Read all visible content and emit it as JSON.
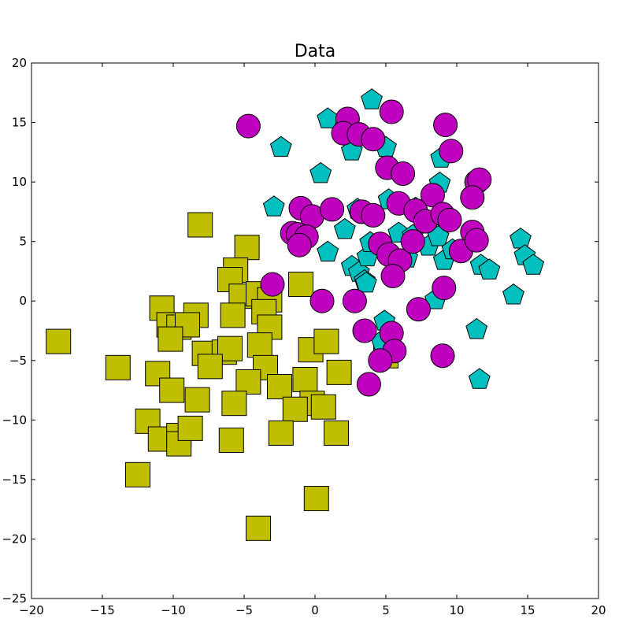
{
  "chart_data": {
    "type": "scatter",
    "title": "Data",
    "xlabel": "",
    "ylabel": "",
    "xlim": [
      -20,
      20
    ],
    "ylim": [
      -25,
      20
    ],
    "xticks": [
      -20,
      -15,
      -10,
      -5,
      0,
      5,
      10,
      15,
      20
    ],
    "yticks": [
      -25,
      -20,
      -15,
      -10,
      -5,
      0,
      5,
      10,
      15,
      20
    ],
    "xtick_labels": [
      "−20",
      "−15",
      "−10",
      "−5",
      "0",
      "5",
      "10",
      "15",
      "20"
    ],
    "ytick_labels": [
      "−25",
      "−20",
      "−15",
      "−10",
      "−5",
      "0",
      "5",
      "10",
      "15",
      "20"
    ],
    "grid": false,
    "series": [
      {
        "marker": "square",
        "color": "#bfbf00",
        "points": [
          [
            -8.1,
            6.4
          ],
          [
            -4.8,
            4.5
          ],
          [
            -5.6,
            2.6
          ],
          [
            -6.0,
            1.8
          ],
          [
            -5.2,
            0.4
          ],
          [
            -4.0,
            0.6
          ],
          [
            -3.2,
            0.1
          ],
          [
            -1.0,
            1.4
          ],
          [
            -10.8,
            -0.6
          ],
          [
            -8.4,
            -1.2
          ],
          [
            -10.3,
            -2.0
          ],
          [
            -9.6,
            -2.2
          ],
          [
            -9.0,
            -2.0
          ],
          [
            -5.8,
            -1.2
          ],
          [
            -3.6,
            -0.9
          ],
          [
            -3.2,
            -2.2
          ],
          [
            -10.2,
            -3.2
          ],
          [
            -7.8,
            -4.4
          ],
          [
            -6.4,
            -4.3
          ],
          [
            -6.0,
            -4.0
          ],
          [
            -3.9,
            -3.7
          ],
          [
            -7.4,
            -5.5
          ],
          [
            -3.5,
            -5.6
          ],
          [
            -0.3,
            -4.1
          ],
          [
            0.8,
            -3.4
          ],
          [
            -13.9,
            -5.6
          ],
          [
            -11.1,
            -6.1
          ],
          [
            -10.1,
            -7.5
          ],
          [
            -8.3,
            -8.3
          ],
          [
            -4.7,
            -6.8
          ],
          [
            -2.5,
            -7.2
          ],
          [
            -0.7,
            -6.6
          ],
          [
            -0.2,
            -8.6
          ],
          [
            -1.4,
            -9.1
          ],
          [
            0.6,
            -8.9
          ],
          [
            1.7,
            -6.0
          ],
          [
            -5.7,
            -8.6
          ],
          [
            -11.8,
            -10.1
          ],
          [
            -10.9,
            -11.6
          ],
          [
            -9.6,
            -11.3
          ],
          [
            -9.6,
            -12.0
          ],
          [
            -8.8,
            -10.7
          ],
          [
            -5.9,
            -11.7
          ],
          [
            -2.4,
            -11.1
          ],
          [
            1.5,
            -11.1
          ],
          [
            -12.5,
            -14.6
          ],
          [
            0.1,
            -16.6
          ],
          [
            -4.0,
            -19.1
          ],
          [
            -18.1,
            -3.4
          ],
          [
            5.0,
            -4.6
          ]
        ]
      },
      {
        "marker": "pentagon",
        "color": "#00bfbf",
        "points": [
          [
            4.0,
            16.9
          ],
          [
            0.9,
            15.3
          ],
          [
            -2.4,
            12.9
          ],
          [
            2.6,
            12.6
          ],
          [
            5.0,
            12.9
          ],
          [
            0.4,
            10.7
          ],
          [
            8.9,
            12.0
          ],
          [
            8.8,
            9.9
          ],
          [
            11.3,
            9.7
          ],
          [
            -2.9,
            7.9
          ],
          [
            2.1,
            6.0
          ],
          [
            3.0,
            7.7
          ],
          [
            5.2,
            8.5
          ],
          [
            7.1,
            7.8
          ],
          [
            0.9,
            4.1
          ],
          [
            2.6,
            2.9
          ],
          [
            3.1,
            2.4
          ],
          [
            3.7,
            3.7
          ],
          [
            3.9,
            4.9
          ],
          [
            3.5,
            1.7
          ],
          [
            5.9,
            5.7
          ],
          [
            6.5,
            3.6
          ],
          [
            6.9,
            5.5
          ],
          [
            8.0,
            4.6
          ],
          [
            8.7,
            5.4
          ],
          [
            9.1,
            3.4
          ],
          [
            9.7,
            4.3
          ],
          [
            11.7,
            3.0
          ],
          [
            12.3,
            2.6
          ],
          [
            14.5,
            5.2
          ],
          [
            14.8,
            3.8
          ],
          [
            15.4,
            3.0
          ],
          [
            14.0,
            0.5
          ],
          [
            8.5,
            0.1
          ],
          [
            4.9,
            -1.7
          ],
          [
            4.7,
            -3.4
          ],
          [
            11.4,
            -2.4
          ],
          [
            11.6,
            -6.6
          ],
          [
            3.6,
            1.5
          ]
        ]
      },
      {
        "marker": "circle",
        "color": "#bf00bf",
        "points": [
          [
            -4.7,
            14.7
          ],
          [
            2.3,
            15.3
          ],
          [
            5.4,
            15.9
          ],
          [
            9.2,
            14.8
          ],
          [
            2.0,
            14.1
          ],
          [
            3.1,
            14.0
          ],
          [
            4.1,
            13.6
          ],
          [
            9.6,
            12.6
          ],
          [
            5.1,
            11.2
          ],
          [
            6.2,
            10.7
          ],
          [
            11.4,
            10.0
          ],
          [
            11.6,
            10.2
          ],
          [
            11.1,
            8.7
          ],
          [
            8.3,
            8.9
          ],
          [
            -1.0,
            7.8
          ],
          [
            -0.2,
            7.1
          ],
          [
            1.2,
            7.7
          ],
          [
            3.3,
            7.5
          ],
          [
            4.1,
            7.2
          ],
          [
            5.9,
            8.2
          ],
          [
            7.1,
            7.6
          ],
          [
            7.8,
            6.7
          ],
          [
            9.0,
            7.3
          ],
          [
            9.5,
            6.8
          ],
          [
            11.1,
            5.8
          ],
          [
            -1.6,
            5.7
          ],
          [
            -1.2,
            5.6
          ],
          [
            -0.6,
            5.4
          ],
          [
            -1.1,
            4.7
          ],
          [
            4.6,
            4.8
          ],
          [
            5.2,
            3.9
          ],
          [
            6.0,
            3.4
          ],
          [
            6.9,
            5.0
          ],
          [
            10.3,
            4.2
          ],
          [
            11.4,
            5.1
          ],
          [
            -3.0,
            1.4
          ],
          [
            0.5,
            0.0
          ],
          [
            2.8,
            0.0
          ],
          [
            5.5,
            2.1
          ],
          [
            7.3,
            -0.7
          ],
          [
            9.1,
            1.1
          ],
          [
            3.5,
            -2.5
          ],
          [
            5.4,
            -2.7
          ],
          [
            5.6,
            -4.2
          ],
          [
            4.6,
            -5.0
          ],
          [
            9.0,
            -4.6
          ],
          [
            3.8,
            -7.0
          ]
        ]
      }
    ]
  }
}
